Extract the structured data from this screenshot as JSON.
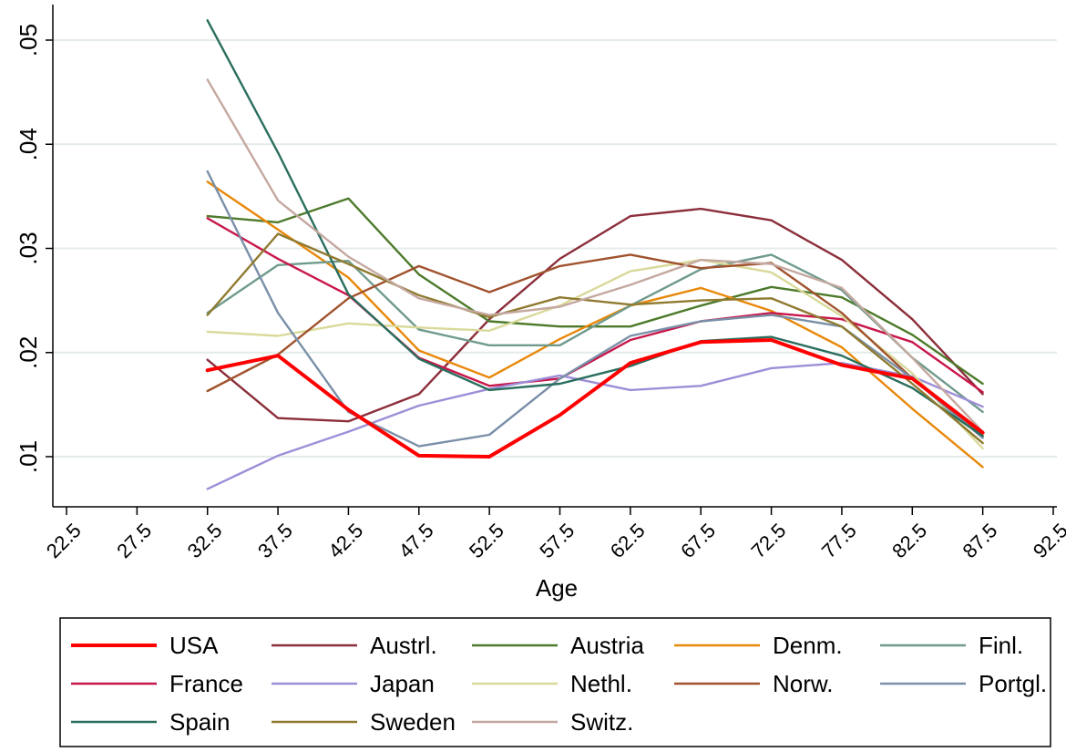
{
  "chart_data": {
    "type": "line",
    "xlabel": "Age",
    "ylabel": "",
    "xlim": [
      22.5,
      92.5
    ],
    "ylim": [
      0.005,
      0.053
    ],
    "x_ticks": [
      "22.5",
      "27.5",
      "32.5",
      "37.5",
      "42.5",
      "47.5",
      "52.5",
      "57.5",
      "62.5",
      "67.5",
      "72.5",
      "77.5",
      "82.5",
      "87.5",
      "92.5"
    ],
    "y_ticks": [
      {
        "value": 0.01,
        "label": ".01"
      },
      {
        "value": 0.02,
        "label": ".02"
      },
      {
        "value": 0.03,
        "label": ".03"
      },
      {
        "value": 0.04,
        "label": ".04"
      },
      {
        "value": 0.05,
        "label": ".05"
      }
    ],
    "grid": "horizontal",
    "legend_position": "bottom",
    "x": [
      32.5,
      37.5,
      42.5,
      47.5,
      52.5,
      57.5,
      62.5,
      67.5,
      72.5,
      77.5,
      82.5,
      87.5
    ],
    "series": [
      {
        "name": "USA",
        "color": "#ff0000",
        "width": 4,
        "values": [
          0.0183,
          0.0197,
          0.0145,
          0.0101,
          0.01,
          0.014,
          0.019,
          0.021,
          0.0212,
          0.0188,
          0.0175,
          0.0123
        ]
      },
      {
        "name": "Austrl.",
        "color": "#8b2e3a",
        "width": 2.4,
        "values": [
          0.0193,
          0.0137,
          0.0134,
          0.016,
          0.0232,
          0.029,
          0.0331,
          0.0338,
          0.0327,
          0.0289,
          0.0232,
          0.016
        ]
      },
      {
        "name": "Austria",
        "color": "#4d7a2a",
        "width": 2.4,
        "values": [
          0.0331,
          0.0325,
          0.0348,
          0.0275,
          0.023,
          0.0225,
          0.0225,
          0.0245,
          0.0263,
          0.0253,
          0.0217,
          0.017
        ]
      },
      {
        "name": "Denm.",
        "color": "#e8880a",
        "width": 2.4,
        "values": [
          0.0364,
          0.0318,
          0.0272,
          0.0202,
          0.0176,
          0.0213,
          0.0245,
          0.0262,
          0.024,
          0.0205,
          0.0146,
          0.009
        ]
      },
      {
        "name": "Finl.",
        "color": "#6f9a8c",
        "width": 2.4,
        "values": [
          0.0238,
          0.0284,
          0.0288,
          0.0222,
          0.0207,
          0.0207,
          0.0245,
          0.028,
          0.0294,
          0.026,
          0.0195,
          0.0143
        ]
      },
      {
        "name": "France",
        "color": "#c8174a",
        "width": 2.4,
        "values": [
          0.0329,
          0.029,
          0.0255,
          0.0195,
          0.0168,
          0.0175,
          0.0212,
          0.023,
          0.0238,
          0.0232,
          0.021,
          0.0162
        ]
      },
      {
        "name": "Japan",
        "color": "#9e8ed8",
        "width": 2.4,
        "values": [
          0.0069,
          0.0101,
          0.0124,
          0.0149,
          0.0165,
          0.0178,
          0.0164,
          0.0168,
          0.0185,
          0.019,
          0.0177,
          0.0148
        ]
      },
      {
        "name": "Nethl.",
        "color": "#d9d99a",
        "width": 2.4,
        "values": [
          0.022,
          0.0216,
          0.0228,
          0.0224,
          0.0221,
          0.0245,
          0.0278,
          0.0289,
          0.0277,
          0.0235,
          0.018,
          0.0108
        ]
      },
      {
        "name": "Norw.",
        "color": "#a0522d",
        "width": 2.4,
        "values": [
          0.0163,
          0.0198,
          0.0252,
          0.0283,
          0.0258,
          0.0283,
          0.0294,
          0.0281,
          0.0286,
          0.0238,
          0.0175,
          0.012
        ]
      },
      {
        "name": "Portgl.",
        "color": "#7a90a8",
        "width": 2.4,
        "values": [
          0.0374,
          0.0238,
          0.0143,
          0.011,
          0.0121,
          0.0175,
          0.0216,
          0.023,
          0.0236,
          0.0225,
          0.0175,
          0.0118
        ]
      },
      {
        "name": "Spain",
        "color": "#2a6e5e",
        "width": 2.4,
        "values": [
          0.0519,
          0.0392,
          0.0256,
          0.0194,
          0.0164,
          0.017,
          0.0187,
          0.0211,
          0.0215,
          0.0197,
          0.0166,
          0.012
        ]
      },
      {
        "name": "Sweden",
        "color": "#8f7a30",
        "width": 2.4,
        "values": [
          0.0236,
          0.0314,
          0.0285,
          0.0255,
          0.0234,
          0.0253,
          0.0246,
          0.025,
          0.0252,
          0.0225,
          0.017,
          0.0113
        ]
      },
      {
        "name": "Switz.",
        "color": "#c4a8a0",
        "width": 2.4,
        "values": [
          0.0462,
          0.0346,
          0.0292,
          0.0252,
          0.0236,
          0.0244,
          0.0265,
          0.0289,
          0.0285,
          0.0262,
          0.0195,
          0.0124
        ]
      }
    ]
  }
}
